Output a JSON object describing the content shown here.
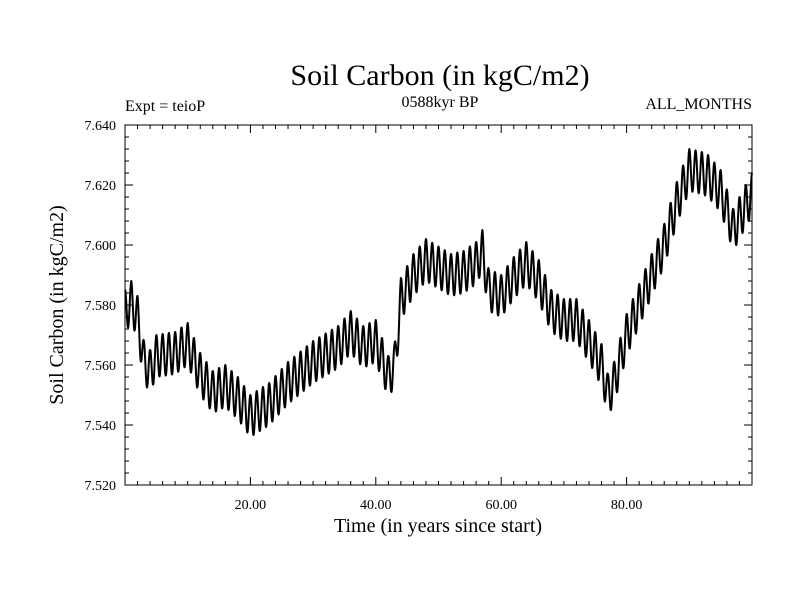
{
  "chart_data": {
    "type": "line",
    "title": "Soil Carbon (in kgC/m2)",
    "subtitle_left": "Expt = teioP",
    "subtitle_center": "0588kyr BP",
    "subtitle_right": "ALL_MONTHS",
    "xlabel": "Time (in years since start)",
    "ylabel": "Soil Carbon (in kgC/m2)",
    "xlim": [
      0,
      100
    ],
    "ylim": [
      7.52,
      7.64
    ],
    "x_ticks": [
      20,
      40,
      60,
      80
    ],
    "x_tick_labels": [
      "20.00",
      "40.00",
      "60.00",
      "80.00"
    ],
    "y_ticks": [
      7.52,
      7.54,
      7.56,
      7.58,
      7.6,
      7.62,
      7.64
    ],
    "y_tick_labels": [
      "7.520",
      "7.540",
      "7.560",
      "7.580",
      "7.600",
      "7.620",
      "7.640"
    ],
    "series": [
      {
        "name": "soil carbon",
        "color": "#000000",
        "cycle_period_years": 1,
        "cycle_amplitude": 0.007,
        "note": "annual seasonal oscillation superimposed on the envelope below",
        "envelope_x": [
          0,
          1,
          2,
          3,
          4,
          5,
          8,
          10,
          12,
          14,
          16,
          18,
          20,
          23,
          26,
          30,
          34,
          36,
          38,
          40,
          42,
          43,
          44,
          46,
          48,
          52,
          54,
          56,
          57,
          58,
          60,
          62,
          64,
          66,
          68,
          70,
          72,
          74,
          76,
          77,
          78,
          80,
          82,
          84,
          86,
          88,
          90,
          92,
          93,
          95,
          97,
          98,
          100
        ],
        "envelope_y": [
          7.578,
          7.581,
          7.576,
          7.561,
          7.558,
          7.563,
          7.564,
          7.567,
          7.557,
          7.551,
          7.553,
          7.549,
          7.543,
          7.547,
          7.554,
          7.561,
          7.566,
          7.571,
          7.566,
          7.568,
          7.556,
          7.56,
          7.582,
          7.59,
          7.595,
          7.59,
          7.591,
          7.594,
          7.598,
          7.585,
          7.583,
          7.589,
          7.594,
          7.588,
          7.578,
          7.575,
          7.575,
          7.568,
          7.56,
          7.55,
          7.554,
          7.57,
          7.58,
          7.59,
          7.6,
          7.614,
          7.625,
          7.624,
          7.623,
          7.618,
          7.605,
          7.609,
          7.617
        ]
      }
    ]
  }
}
